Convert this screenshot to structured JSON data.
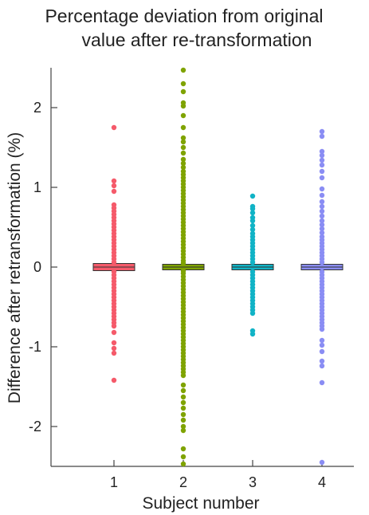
{
  "chart_data": {
    "type": "box",
    "title": [
      "Percentage deviation from original",
      "value after re-transformation"
    ],
    "xlabel": "Subject number",
    "ylabel": "Difference after retransformation (%)",
    "ylim": [
      -2.5,
      2.5
    ],
    "yticks": [
      2,
      1,
      0,
      -1,
      -2
    ],
    "ytick_labels": [
      "2",
      "1",
      "0",
      "-1",
      "-2"
    ],
    "categories": [
      "1",
      "2",
      "3",
      "4"
    ],
    "series": [
      {
        "color": "#f55a6a",
        "box": {
          "q1": -0.03,
          "median": 0.0,
          "q3": 0.03
        },
        "outliers": [
          1.75,
          1.08,
          1.02,
          0.95,
          0.78,
          0.74,
          0.7,
          0.66,
          0.62,
          0.58,
          0.54,
          0.5,
          0.46,
          0.42,
          0.38,
          0.34,
          0.3,
          0.26,
          0.22,
          0.18,
          0.14,
          0.1,
          0.06,
          -0.06,
          -0.1,
          -0.14,
          -0.18,
          -0.22,
          -0.26,
          -0.3,
          -0.34,
          -0.38,
          -0.42,
          -0.46,
          -0.5,
          -0.54,
          -0.58,
          -0.62,
          -0.66,
          -0.7,
          -0.74,
          -0.82,
          -0.95,
          -1.02,
          -1.08,
          -1.42
        ]
      },
      {
        "color": "#7fa300",
        "box": {
          "q1": -0.02,
          "median": 0.0,
          "q3": 0.02
        },
        "outliers": [
          2.47,
          2.3,
          2.2,
          2.06,
          2.02,
          1.9,
          1.75,
          1.62,
          1.57,
          1.5,
          1.43,
          1.35,
          1.3,
          1.25,
          1.2,
          1.16,
          1.12,
          1.08,
          1.04,
          1.0,
          0.96,
          0.92,
          0.88,
          0.84,
          0.8,
          0.76,
          0.72,
          0.68,
          0.64,
          0.6,
          0.56,
          0.52,
          0.48,
          0.44,
          0.4,
          0.36,
          0.32,
          0.28,
          0.24,
          0.2,
          0.16,
          0.12,
          0.08,
          0.05,
          -0.05,
          -0.08,
          -0.12,
          -0.16,
          -0.2,
          -0.24,
          -0.28,
          -0.32,
          -0.36,
          -0.4,
          -0.44,
          -0.48,
          -0.52,
          -0.56,
          -0.6,
          -0.64,
          -0.68,
          -0.72,
          -0.76,
          -0.8,
          -0.84,
          -0.88,
          -0.92,
          -0.96,
          -1.0,
          -1.04,
          -1.08,
          -1.12,
          -1.16,
          -1.2,
          -1.24,
          -1.28,
          -1.32,
          -1.36,
          -1.48,
          -1.55,
          -1.63,
          -1.7,
          -1.77,
          -1.85,
          -1.92,
          -2.0,
          -2.05,
          -2.28,
          -2.38,
          -2.47
        ]
      },
      {
        "color": "#10b3c6",
        "box": {
          "q1": -0.02,
          "median": 0.0,
          "q3": 0.02
        },
        "outliers": [
          0.89,
          0.76,
          0.73,
          0.68,
          0.62,
          0.58,
          0.52,
          0.47,
          0.42,
          0.38,
          0.34,
          0.3,
          0.26,
          0.22,
          0.18,
          0.14,
          0.1,
          0.06,
          -0.06,
          -0.1,
          -0.14,
          -0.18,
          -0.22,
          -0.26,
          -0.3,
          -0.34,
          -0.38,
          -0.42,
          -0.46,
          -0.5,
          -0.54,
          -0.58,
          -0.8,
          -0.84
        ]
      },
      {
        "color": "#8a8df4",
        "box": {
          "q1": -0.02,
          "median": 0.0,
          "q3": 0.02
        },
        "outliers": [
          1.7,
          1.64,
          1.45,
          1.4,
          1.34,
          1.28,
          1.2,
          1.12,
          0.98,
          0.9,
          0.82,
          0.76,
          0.7,
          0.64,
          0.58,
          0.53,
          0.48,
          0.43,
          0.38,
          0.34,
          0.3,
          0.26,
          0.22,
          0.18,
          0.14,
          0.1,
          0.06,
          -0.06,
          -0.1,
          -0.14,
          -0.18,
          -0.22,
          -0.26,
          -0.3,
          -0.34,
          -0.38,
          -0.42,
          -0.46,
          -0.5,
          -0.54,
          -0.58,
          -0.62,
          -0.66,
          -0.7,
          -0.74,
          -0.78,
          -0.92,
          -0.98,
          -1.06,
          -1.18,
          -1.24,
          -1.45,
          -2.45
        ]
      }
    ]
  }
}
